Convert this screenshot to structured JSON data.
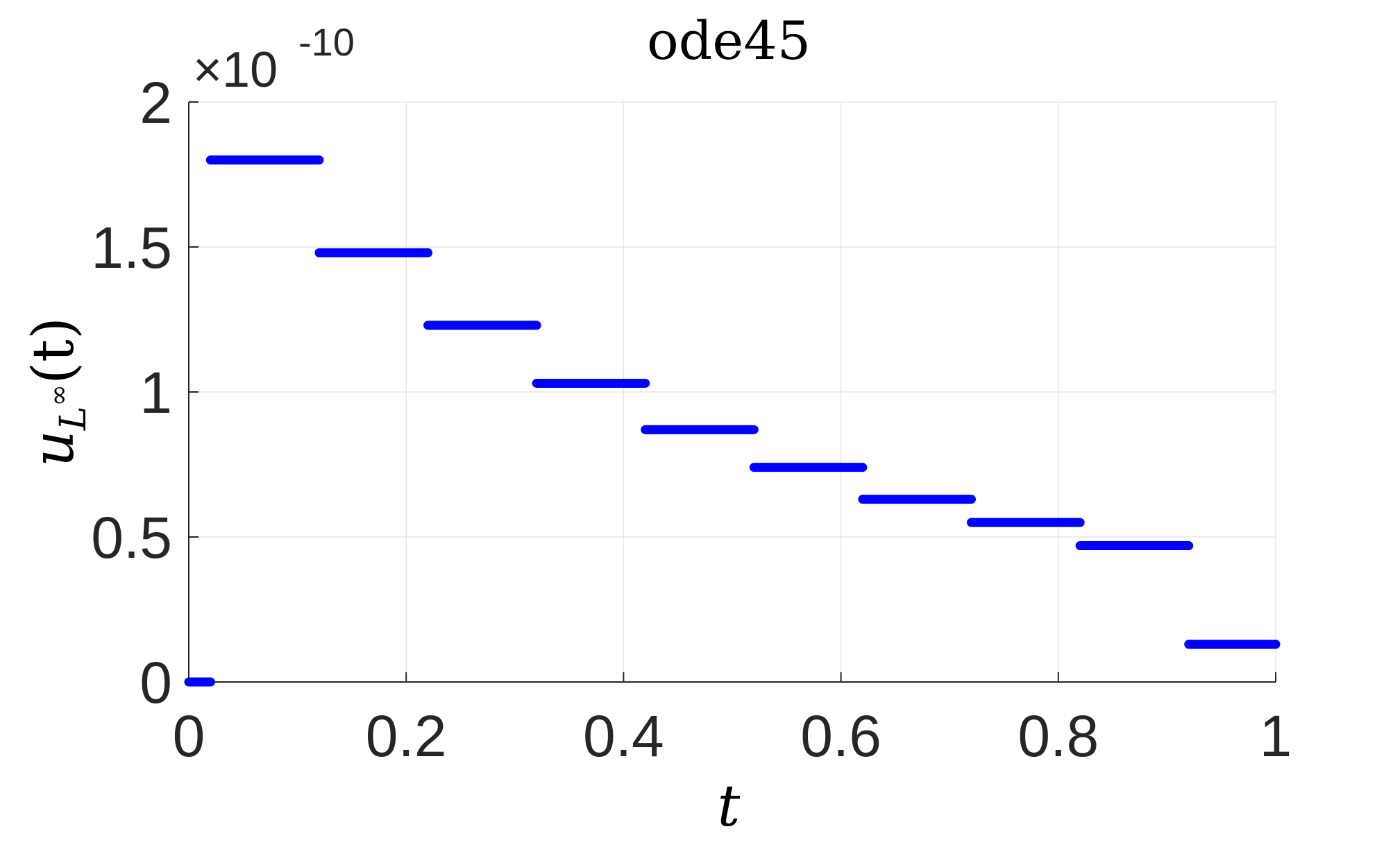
{
  "chart_data": {
    "type": "line",
    "title": "ode45",
    "xlabel": "t",
    "ylabel": {
      "base": "u",
      "sub": "L",
      "sup": "∞",
      "arg": "(t)"
    },
    "y_scale_note": {
      "prefix": "×10",
      "exponent": "-10"
    },
    "xlim": [
      0,
      1
    ],
    "ylim": [
      0,
      2
    ],
    "grid": true,
    "x_ticks": [
      0,
      0.2,
      0.4,
      0.6,
      0.8,
      1
    ],
    "x_tick_labels": [
      "0",
      "0.2",
      "0.4",
      "0.6",
      "0.8",
      "1"
    ],
    "y_ticks": [
      0,
      0.5,
      1,
      1.5,
      2
    ],
    "y_tick_labels": [
      "0",
      "0.5",
      "1",
      "1.5",
      "2"
    ],
    "series": [
      {
        "color": "#0000ff",
        "segments": [
          {
            "x": [
              0,
              0.02
            ],
            "y": 0
          },
          {
            "x": [
              0.02,
              0.12
            ],
            "y": 1.8
          },
          {
            "x": [
              0.12,
              0.22
            ],
            "y": 1.48
          },
          {
            "x": [
              0.22,
              0.32
            ],
            "y": 1.23
          },
          {
            "x": [
              0.32,
              0.42
            ],
            "y": 1.03
          },
          {
            "x": [
              0.42,
              0.52
            ],
            "y": 0.87
          },
          {
            "x": [
              0.52,
              0.62
            ],
            "y": 0.74
          },
          {
            "x": [
              0.62,
              0.72
            ],
            "y": 0.63
          },
          {
            "x": [
              0.72,
              0.82
            ],
            "y": 0.55
          },
          {
            "x": [
              0.82,
              0.92
            ],
            "y": 0.47
          },
          {
            "x": [
              0.92,
              1.0
            ],
            "y": 0.13
          }
        ]
      }
    ]
  }
}
